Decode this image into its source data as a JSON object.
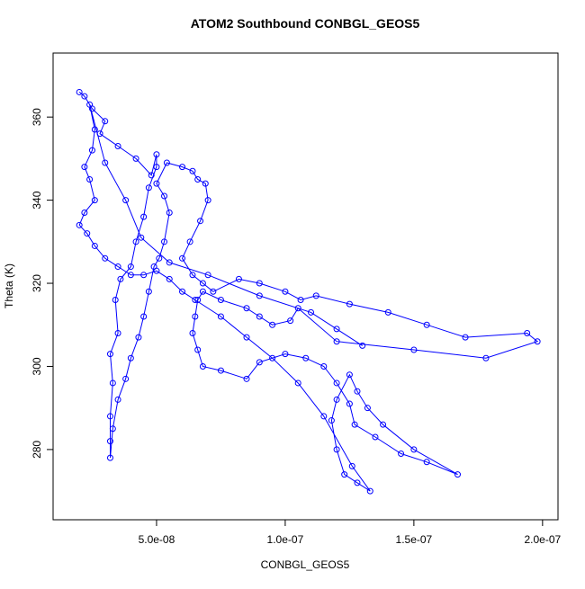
{
  "chart_data": {
    "type": "line",
    "title": "ATOM2 Southbound CONBGL_GEOS5",
    "x_label": "CONBGL_GEOS5",
    "y_label": "Theta (K)",
    "x": [
      2e-08,
      2.2e-08,
      2.5e-08,
      3e-08,
      2.8e-08,
      3.5e-08,
      4.2e-08,
      4.8e-08,
      5e-08,
      5e-08,
      4.7e-08,
      4.5e-08,
      4.2e-08,
      4e-08,
      3.6e-08,
      3.4e-08,
      3.5e-08,
      3.2e-08,
      3.3e-08,
      3.2e-08,
      3.2e-08,
      3.2e-08,
      3.3e-08,
      3.5e-08,
      3.8e-08,
      4e-08,
      4.3e-08,
      4.5e-08,
      4.7e-08,
      4.9e-08,
      5.1e-08,
      5.3e-08,
      5.5e-08,
      5.3e-08,
      5e-08,
      5.4e-08,
      6e-08,
      6.4e-08,
      6.6e-08,
      6.9e-08,
      7e-08,
      6.7e-08,
      6.3e-08,
      6e-08,
      6.4e-08,
      6.8e-08,
      7.2e-08,
      8.2e-08,
      9e-08,
      1e-07,
      1.06e-07,
      1.12e-07,
      1.25e-07,
      1.4e-07,
      1.55e-07,
      1.7e-07,
      1.94e-07,
      1.98e-07,
      1.78e-07,
      1.5e-07,
      1.2e-07,
      1.05e-07,
      1.02e-07,
      9.5e-08,
      9e-08,
      8.5e-08,
      7.5e-08,
      6.8e-08,
      6.6e-08,
      6.5e-08,
      6.4e-08,
      6.6e-08,
      6.8e-08,
      7.5e-08,
      8.5e-08,
      9e-08,
      1e-07,
      1.08e-07,
      1.15e-07,
      1.2e-07,
      1.25e-07,
      1.27e-07,
      1.35e-07,
      1.45e-07,
      1.55e-07,
      1.67e-07,
      1.5e-07,
      1.38e-07,
      1.32e-07,
      1.28e-07,
      1.25e-07,
      1.2e-07,
      1.18e-07,
      1.2e-07,
      1.23e-07,
      1.28e-07,
      1.33e-07,
      1.26e-07,
      1.15e-07,
      1.05e-07,
      9.5e-08,
      8.5e-08,
      7.5e-08,
      6.5e-08,
      6e-08,
      5.5e-08,
      5e-08,
      4.5e-08,
      4e-08,
      3.5e-08,
      3e-08,
      2.6e-08,
      2.3e-08,
      2e-08,
      2.2e-08,
      2.6e-08,
      2.4e-08,
      2.2e-08,
      2.5e-08,
      2.6e-08,
      2.4e-08,
      3e-08,
      3.8e-08,
      4.4e-08,
      5.5e-08,
      7e-08,
      9e-08,
      1.1e-07,
      1.2e-07,
      1.3e-07
    ],
    "series": [
      {
        "color": "#0000ff",
        "values": [
          366,
          365,
          362,
          359,
          356,
          353,
          350,
          346,
          351,
          348,
          343,
          336,
          330,
          324,
          321,
          316,
          308,
          303,
          296,
          288,
          282,
          278,
          285,
          292,
          297,
          302,
          307,
          312,
          318,
          324,
          326,
          330,
          337,
          341,
          344,
          349,
          348,
          347,
          345,
          344,
          340,
          335,
          330,
          326,
          322,
          320,
          318,
          321,
          320,
          318,
          316,
          317,
          315,
          313,
          310,
          307,
          308,
          306,
          302,
          304,
          306,
          314,
          311,
          310,
          312,
          314,
          316,
          318,
          316,
          312,
          308,
          304,
          300,
          299,
          297,
          301,
          303,
          302,
          300,
          296,
          291,
          286,
          283,
          279,
          277,
          274,
          280,
          286,
          290,
          294,
          298,
          292,
          287,
          280,
          274,
          272,
          270,
          276,
          288,
          296,
          302,
          307,
          312,
          316,
          318,
          321,
          323,
          322,
          322,
          324,
          326,
          329,
          332,
          334,
          337,
          340,
          345,
          348,
          352,
          357,
          363,
          349,
          340,
          331,
          325,
          322,
          317,
          313,
          309,
          305
        ]
      }
    ],
    "xlim": [
      9.8e-09,
      2.06e-07
    ],
    "ylim": [
      263.1,
      375.4
    ],
    "xticks": [
      {
        "value": 5e-08,
        "label": "5.0e-08"
      },
      {
        "value": 1e-07,
        "label": "1.0e-07"
      },
      {
        "value": 1.5e-07,
        "label": "1.5e-07"
      },
      {
        "value": 2e-07,
        "label": "2.0e-07"
      }
    ],
    "yticks": [
      280,
      300,
      320,
      340,
      360
    ],
    "marker": "circle"
  }
}
